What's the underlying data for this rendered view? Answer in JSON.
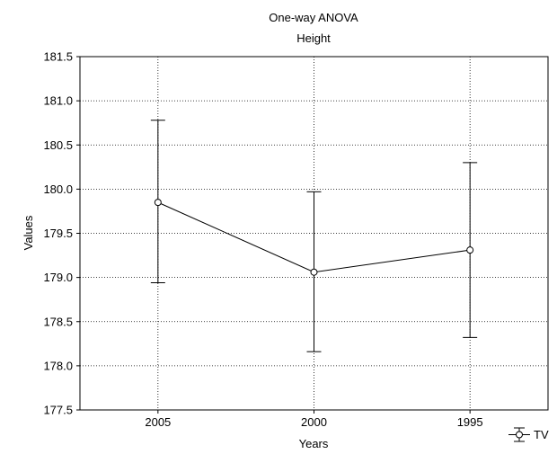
{
  "chart_data": {
    "type": "line",
    "title": "One-way ANOVA",
    "subtitle": "Height",
    "xlabel": "Years",
    "ylabel": "Values",
    "categories": [
      "2005",
      "2000",
      "1995"
    ],
    "ylim": [
      177.5,
      181.5
    ],
    "yticks": [
      "177.5",
      "178.0",
      "178.5",
      "179.0",
      "179.5",
      "180.0",
      "180.5",
      "181.0",
      "181.5"
    ],
    "grid": true,
    "legend_position": "bottom-right",
    "series": [
      {
        "name": "TV",
        "values": [
          179.85,
          179.06,
          179.31
        ],
        "error_low": [
          178.94,
          178.16,
          178.32
        ],
        "error_high": [
          180.78,
          179.97,
          180.3
        ]
      }
    ]
  },
  "colors": {
    "line": "#000000",
    "grid": "#000000",
    "marker_fill": "#ffffff"
  }
}
